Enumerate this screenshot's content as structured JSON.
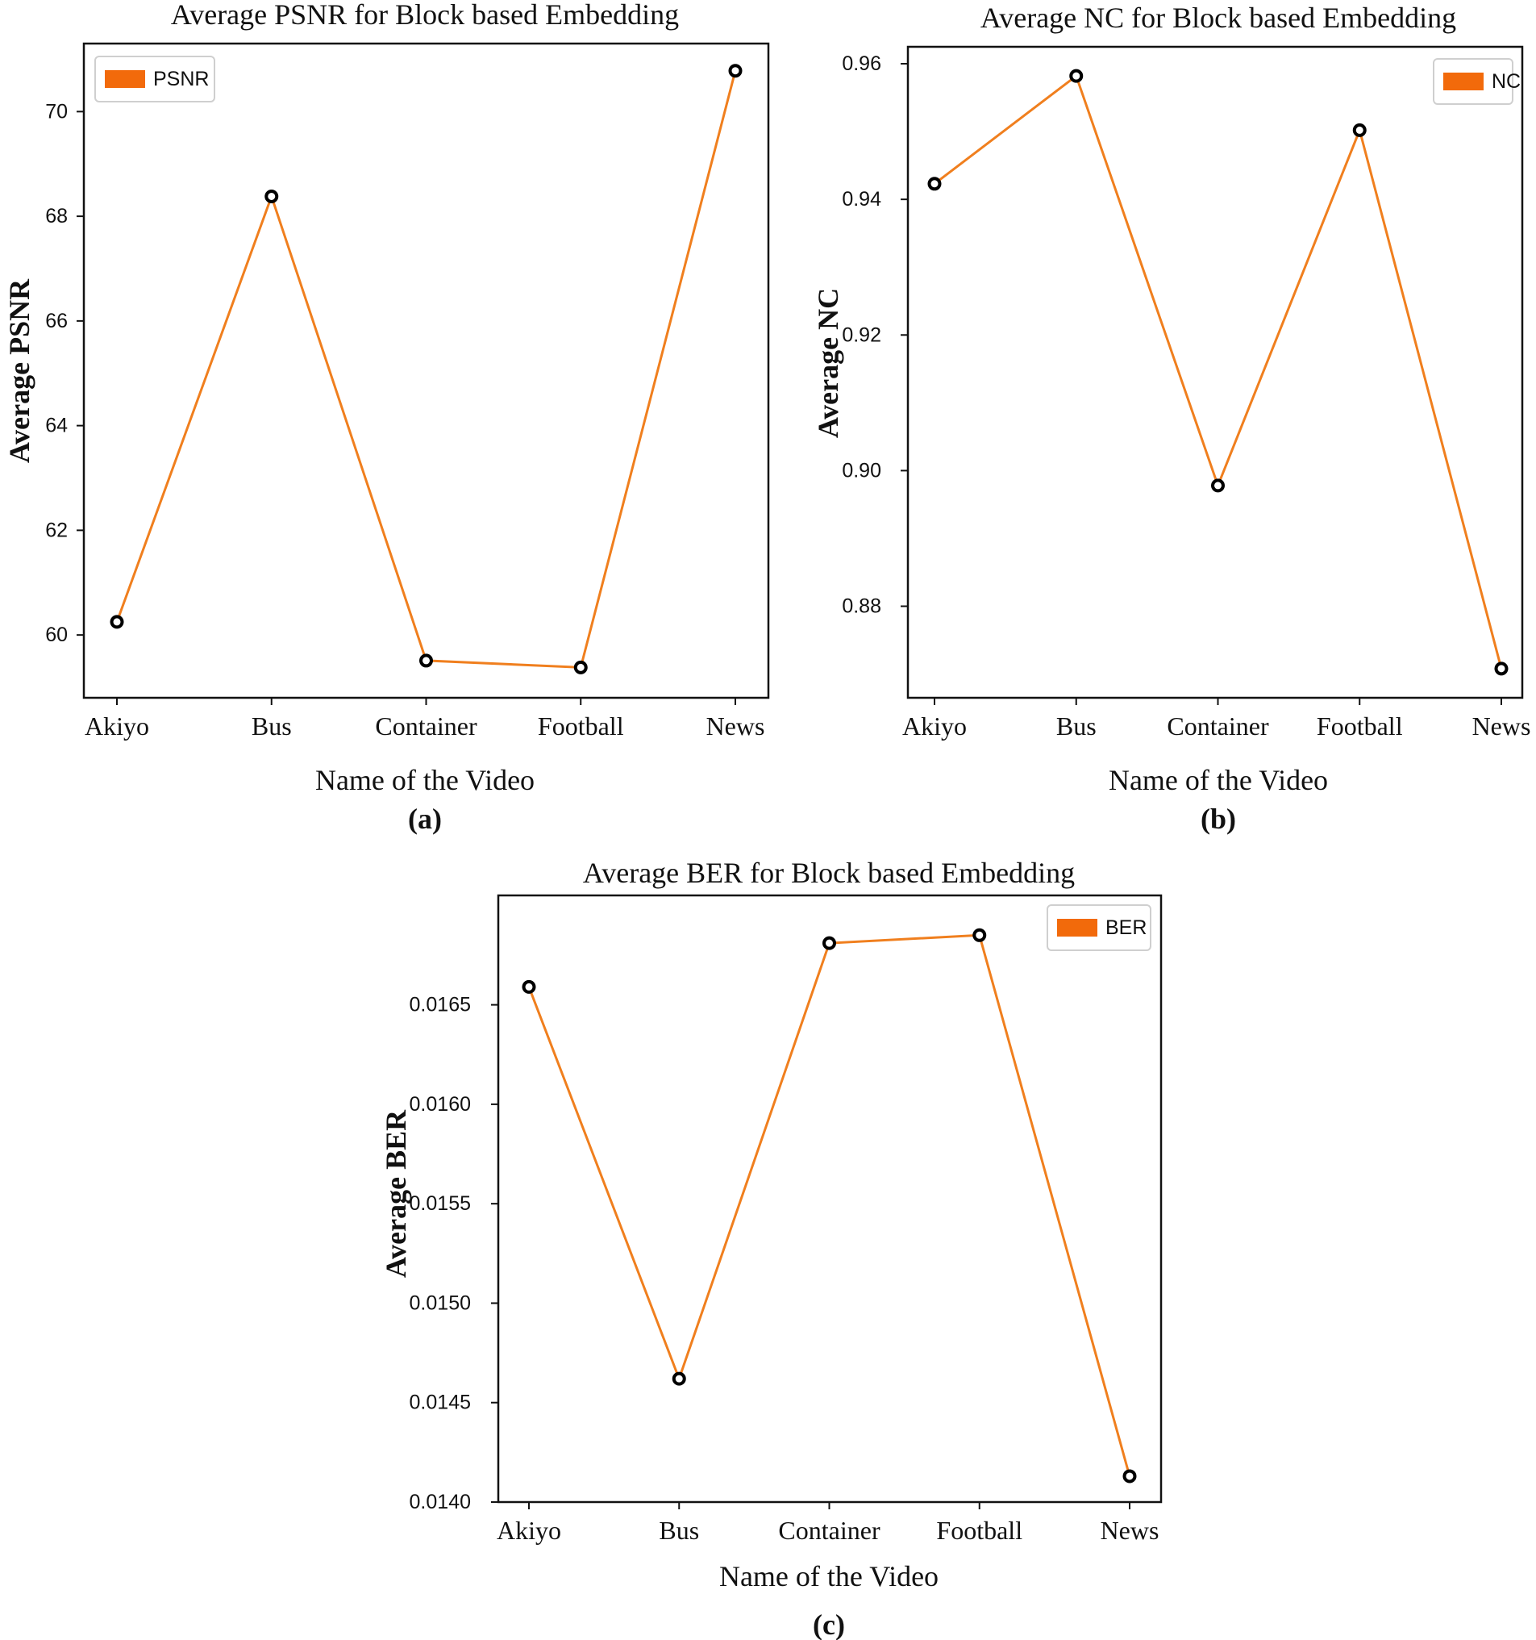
{
  "chart_data": [
    {
      "type": "line",
      "caption": "(a)",
      "title": "Average PSNR for Block based Embedding",
      "xlabel": "Name of the Video",
      "ylabel": "Average PSNR",
      "categories": [
        "Akiyo",
        "Bus",
        "Container",
        "Football",
        "News"
      ],
      "series": [
        {
          "name": "PSNR",
          "values": [
            60.25,
            68.38,
            59.51,
            59.38,
            70.78
          ]
        }
      ],
      "yticks": [
        "60",
        "62",
        "64",
        "66",
        "68",
        "70"
      ],
      "ylim": [
        58.8,
        71.3
      ],
      "legend": "top-left",
      "color": "#f07f1e",
      "marker": "open-circle"
    },
    {
      "type": "line",
      "caption": "(b)",
      "title": "Average NC for Block based Embedding",
      "xlabel": "Name of the Video",
      "ylabel": "Average NC",
      "categories": [
        "Akiyo",
        "Bus",
        "Container",
        "Football",
        "News"
      ],
      "series": [
        {
          "name": "NC",
          "values": [
            0.9423,
            0.9582,
            0.8978,
            0.9502,
            0.8708
          ]
        }
      ],
      "yticks": [
        "0.88",
        "0.90",
        "0.92",
        "0.94",
        "0.96"
      ],
      "ylim": [
        0.8665,
        0.9625
      ],
      "legend": "top-right",
      "color": "#f07f1e",
      "marker": "open-circle"
    },
    {
      "type": "line",
      "caption": "(c)",
      "title": "Average BER for Block based Embedding",
      "xlabel": "Name of the Video",
      "ylabel": "Average BER",
      "categories": [
        "Akiyo",
        "Bus",
        "Container",
        "Football",
        "News"
      ],
      "series": [
        {
          "name": "BER",
          "values": [
            0.01659,
            0.01462,
            0.01681,
            0.01685,
            0.01413
          ]
        }
      ],
      "yticks": [
        "0.0140",
        "0.0145",
        "0.0150",
        "0.0155",
        "0.0160",
        "0.0165"
      ],
      "ylim": [
        0.014,
        0.01705
      ],
      "legend": "top-right",
      "color": "#f07f1e",
      "marker": "open-circle"
    }
  ]
}
